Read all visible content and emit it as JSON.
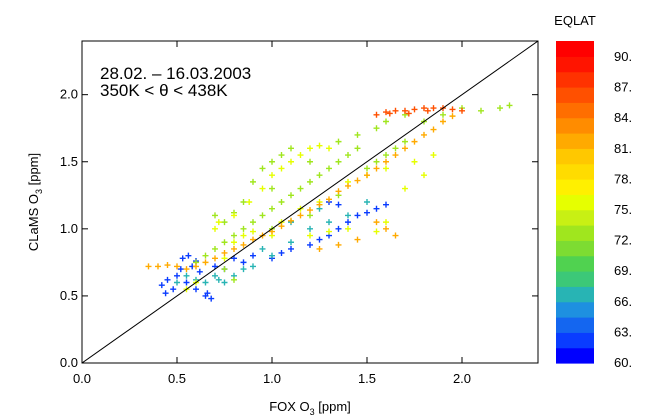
{
  "chart_data": {
    "type": "scatter",
    "annotations": [
      "28.02. – 16.03.2003",
      "350K < θ < 438K"
    ],
    "xlabel": {
      "main": "FOX O",
      "sub": "3",
      "unit": " [ppm]"
    },
    "ylabel": {
      "main": "CLaMS O",
      "sub": "3",
      "unit": " [ppm]"
    },
    "xlim": [
      0.0,
      2.4
    ],
    "ylim": [
      0.0,
      2.4
    ],
    "x_ticks": [
      0.0,
      0.5,
      1.0,
      1.5,
      2.0
    ],
    "x_tick_labels": [
      "0.0",
      "0.5",
      "1.0",
      "1.5",
      "2.0"
    ],
    "y_ticks": [
      0.0,
      0.5,
      1.0,
      1.5,
      2.0
    ],
    "y_tick_labels": [
      "0.0",
      "0.5",
      "1.0",
      "1.5",
      "2.0"
    ],
    "reference_line": {
      "slope": 1,
      "intercept": 0
    },
    "color_by": "EQLAT",
    "colorbar": {
      "title": "EQLAT",
      "min": 60,
      "max": 91,
      "labels": [
        "90.",
        "87.",
        "84.",
        "81.",
        "78.",
        "75.",
        "72.",
        "69.",
        "66.",
        "63.",
        "60."
      ],
      "colors": [
        "#0000ff",
        "#0a3cff",
        "#1466f0",
        "#1e90e0",
        "#28b4b4",
        "#3cc878",
        "#50d250",
        "#7ddc32",
        "#a0e61e",
        "#c8f014",
        "#e6ff00",
        "#fff000",
        "#ffdc00",
        "#ffc800",
        "#ffaa00",
        "#ff8c00",
        "#ff6e00",
        "#ff5000",
        "#ff3200",
        "#ff1400",
        "#ff0000"
      ]
    },
    "marker": "+",
    "series": [
      {
        "values": [
          [
            0.42,
            0.58
          ],
          [
            0.45,
            0.62
          ],
          [
            0.5,
            0.65
          ],
          [
            0.55,
            0.6
          ],
          [
            0.6,
            0.55
          ],
          [
            0.65,
            0.5
          ],
          [
            0.48,
            0.55
          ],
          [
            0.52,
            0.7
          ],
          [
            0.58,
            0.72
          ],
          [
            0.62,
            0.68
          ],
          [
            0.7,
            0.72
          ],
          [
            0.75,
            0.7
          ],
          [
            0.8,
            0.78
          ],
          [
            0.85,
            0.75
          ],
          [
            0.9,
            0.8
          ],
          [
            1.0,
            0.78
          ],
          [
            1.05,
            0.82
          ],
          [
            1.1,
            0.85
          ],
          [
            1.2,
            0.88
          ],
          [
            1.25,
            0.92
          ],
          [
            1.3,
            0.95
          ],
          [
            1.35,
            1.0
          ],
          [
            1.4,
            1.05
          ],
          [
            1.45,
            1.1
          ],
          [
            1.5,
            1.12
          ],
          [
            1.55,
            1.15
          ],
          [
            1.6,
            1.18
          ],
          [
            1.3,
            1.2
          ],
          [
            1.35,
            1.18
          ],
          [
            0.53,
            0.78
          ],
          [
            0.56,
            0.8
          ],
          [
            0.6,
            0.76
          ],
          [
            0.68,
            0.48
          ],
          [
            0.66,
            0.52
          ],
          [
            0.44,
            0.52
          ]
        ],
        "eqlat": 62
      },
      {
        "values": [
          [
            0.5,
            0.6
          ],
          [
            0.55,
            0.65
          ],
          [
            0.6,
            0.62
          ],
          [
            0.65,
            0.6
          ],
          [
            0.7,
            0.65
          ],
          [
            0.72,
            0.62
          ],
          [
            0.75,
            0.6
          ],
          [
            0.8,
            0.65
          ],
          [
            0.85,
            0.7
          ],
          [
            0.9,
            0.72
          ],
          [
            1.0,
            0.8
          ],
          [
            1.1,
            0.9
          ],
          [
            1.2,
            1.0
          ],
          [
            1.3,
            1.05
          ],
          [
            1.4,
            1.1
          ],
          [
            1.5,
            1.2
          ],
          [
            1.25,
            1.15
          ],
          [
            1.1,
            1.05
          ],
          [
            0.95,
            0.85
          ]
        ],
        "eqlat": 66
      },
      {
        "values": [
          [
            0.6,
            0.75
          ],
          [
            0.65,
            0.8
          ],
          [
            0.7,
            0.85
          ],
          [
            0.75,
            0.9
          ],
          [
            0.8,
            0.95
          ],
          [
            0.85,
            1.0
          ],
          [
            0.9,
            1.05
          ],
          [
            0.95,
            1.1
          ],
          [
            1.0,
            1.15
          ],
          [
            1.05,
            1.2
          ],
          [
            1.1,
            1.25
          ],
          [
            1.15,
            1.3
          ],
          [
            1.2,
            1.35
          ],
          [
            1.25,
            1.4
          ],
          [
            1.3,
            1.45
          ],
          [
            1.35,
            1.5
          ],
          [
            1.4,
            1.55
          ],
          [
            1.45,
            1.6
          ],
          [
            1.5,
            1.45
          ],
          [
            1.55,
            1.5
          ],
          [
            1.6,
            1.55
          ],
          [
            1.65,
            1.6
          ],
          [
            1.7,
            1.65
          ],
          [
            1.2,
            1.5
          ],
          [
            1.0,
            1.3
          ],
          [
            0.9,
            1.35
          ],
          [
            0.95,
            1.45
          ],
          [
            1.0,
            1.5
          ],
          [
            1.05,
            1.55
          ],
          [
            1.1,
            1.6
          ],
          [
            0.85,
            1.2
          ],
          [
            1.35,
            1.65
          ],
          [
            1.45,
            1.7
          ],
          [
            1.55,
            1.75
          ],
          [
            1.6,
            1.8
          ],
          [
            1.7,
            1.85
          ],
          [
            1.8,
            1.8
          ],
          [
            1.9,
            1.85
          ],
          [
            2.0,
            1.9
          ],
          [
            2.1,
            1.88
          ],
          [
            2.2,
            1.9
          ],
          [
            2.25,
            1.92
          ],
          [
            0.75,
            0.7
          ],
          [
            0.8,
            0.62
          ],
          [
            1.0,
            1.0
          ],
          [
            1.2,
            1.1
          ],
          [
            1.35,
            1.25
          ],
          [
            0.7,
            1.1
          ],
          [
            0.75,
            1.05
          ],
          [
            0.8,
            1.12
          ]
        ],
        "eqlat": 72
      },
      {
        "values": [
          [
            0.7,
            1.0
          ],
          [
            0.72,
            1.05
          ],
          [
            0.8,
            1.1
          ],
          [
            0.88,
            1.2
          ],
          [
            0.95,
            1.3
          ],
          [
            1.0,
            1.4
          ],
          [
            1.05,
            1.45
          ],
          [
            1.1,
            1.5
          ],
          [
            1.15,
            1.55
          ],
          [
            1.2,
            1.6
          ],
          [
            1.25,
            1.62
          ],
          [
            1.3,
            1.6
          ],
          [
            0.8,
            0.9
          ],
          [
            0.85,
            0.95
          ],
          [
            0.9,
            0.98
          ],
          [
            1.0,
            0.95
          ],
          [
            1.05,
            1.05
          ],
          [
            1.15,
            1.15
          ],
          [
            1.25,
            1.2
          ],
          [
            1.4,
            1.35
          ],
          [
            1.5,
            1.4
          ],
          [
            1.6,
            1.45
          ],
          [
            1.75,
            1.5
          ],
          [
            1.85,
            1.55
          ],
          [
            1.2,
            0.95
          ],
          [
            1.3,
            0.98
          ],
          [
            1.4,
            1.0
          ],
          [
            1.55,
            0.98
          ],
          [
            1.6,
            1.05
          ],
          [
            0.75,
            0.78
          ],
          [
            0.6,
            0.6
          ],
          [
            0.55,
            0.55
          ],
          [
            1.7,
            1.3
          ],
          [
            1.8,
            1.4
          ]
        ],
        "eqlat": 76
      },
      {
        "values": [
          [
            0.35,
            0.72
          ],
          [
            0.4,
            0.72
          ],
          [
            0.45,
            0.73
          ],
          [
            0.5,
            0.72
          ],
          [
            0.55,
            0.7
          ],
          [
            0.6,
            0.72
          ],
          [
            0.65,
            0.75
          ],
          [
            0.7,
            0.78
          ],
          [
            0.75,
            0.82
          ],
          [
            0.8,
            0.85
          ],
          [
            0.85,
            0.88
          ],
          [
            0.9,
            0.92
          ],
          [
            0.95,
            0.95
          ],
          [
            1.0,
            0.98
          ],
          [
            1.05,
            1.02
          ],
          [
            1.1,
            1.06
          ],
          [
            1.15,
            1.1
          ],
          [
            1.2,
            1.14
          ],
          [
            1.25,
            1.18
          ],
          [
            1.3,
            1.22
          ],
          [
            1.35,
            1.28
          ],
          [
            1.4,
            1.32
          ],
          [
            1.45,
            1.36
          ],
          [
            1.5,
            1.4
          ],
          [
            1.55,
            1.45
          ],
          [
            1.6,
            1.5
          ],
          [
            1.65,
            1.55
          ],
          [
            1.7,
            1.6
          ],
          [
            1.75,
            1.65
          ],
          [
            1.8,
            1.7
          ],
          [
            1.85,
            1.74
          ],
          [
            1.9,
            1.8
          ],
          [
            1.95,
            1.84
          ],
          [
            1.6,
            1.0
          ],
          [
            1.65,
            0.95
          ],
          [
            1.55,
            1.05
          ],
          [
            1.45,
            0.92
          ],
          [
            1.35,
            0.88
          ],
          [
            1.25,
            0.85
          ]
        ],
        "eqlat": 81
      },
      {
        "values": [
          [
            1.55,
            1.85
          ],
          [
            1.6,
            1.87
          ],
          [
            1.65,
            1.88
          ],
          [
            1.7,
            1.88
          ],
          [
            1.75,
            1.89
          ],
          [
            1.8,
            1.9
          ],
          [
            1.85,
            1.9
          ],
          [
            1.9,
            1.9
          ],
          [
            1.95,
            1.89
          ],
          [
            2.0,
            1.88
          ],
          [
            1.62,
            1.86
          ],
          [
            1.72,
            1.86
          ],
          [
            1.82,
            1.88
          ]
        ],
        "eqlat": 86
      }
    ]
  }
}
